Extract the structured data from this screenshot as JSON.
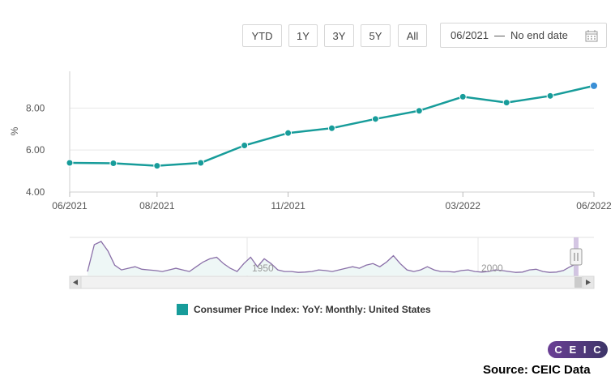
{
  "toolbar": {
    "buttons": [
      "YTD",
      "1Y",
      "3Y",
      "5Y",
      "All"
    ],
    "date_start": "06/2021",
    "date_sep": "—",
    "date_end": "No end date"
  },
  "chart_data": {
    "type": "line",
    "ylabel": "%",
    "ylim": [
      4.0,
      9.75
    ],
    "yticks": [
      "4.00",
      "6.00",
      "8.00"
    ],
    "xtick_labels": [
      "06/2021",
      "08/2021",
      "11/2021",
      "03/2022",
      "06/2022"
    ],
    "series": [
      {
        "name": "Consumer Price Index: YoY: Monthly: United States",
        "color": "#179c9a",
        "x": [
          "06/2021",
          "07/2021",
          "08/2021",
          "09/2021",
          "10/2021",
          "11/2021",
          "12/2021",
          "01/2022",
          "02/2022",
          "03/2022",
          "04/2022",
          "05/2022",
          "06/2022"
        ],
        "values": [
          5.39,
          5.37,
          5.25,
          5.39,
          6.22,
          6.81,
          7.04,
          7.48,
          7.87,
          8.54,
          8.26,
          8.58,
          9.06
        ]
      }
    ],
    "navigator": {
      "labels": [
        "1950",
        "2000"
      ]
    }
  },
  "legend": {
    "label": "Consumer Price Index: YoY: Monthly: United States"
  },
  "branding": {
    "logo_letters": [
      "C",
      "E",
      "I",
      "C"
    ],
    "source": "Source: CEIC Data"
  }
}
